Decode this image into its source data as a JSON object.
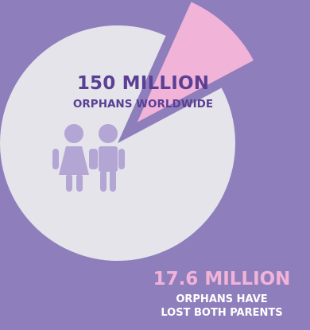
{
  "colors": {
    "background": "#8f7ebc",
    "pie_main": "#e4e4ea",
    "pie_slice": "#f1b3d8",
    "label_main": "#5a3f94",
    "label_slice": "#f1b3d8",
    "label_slice_caption": "#ffffff",
    "children_icon": "#b3a5d4"
  },
  "icons": {
    "children": "children-icon"
  },
  "chart_data": {
    "type": "pie",
    "series": [
      {
        "name": "150 MILLION ORPHANS WORLDWIDE",
        "value": 150,
        "exploded": false,
        "color": "#e4e4ea"
      },
      {
        "name": "17.6 MILLION ORPHANS HAVE LOST BOTH PARENTS",
        "value": 17.6,
        "exploded": true,
        "color": "#f1b3d8"
      }
    ],
    "labels": {
      "main_value": "150 MILLION",
      "main_caption": "ORPHANS WORLDWIDE",
      "slice_value": "17.6 MILLION",
      "slice_caption_line1": "ORPHANS HAVE",
      "slice_caption_line2": "LOST BOTH PARENTS"
    }
  }
}
